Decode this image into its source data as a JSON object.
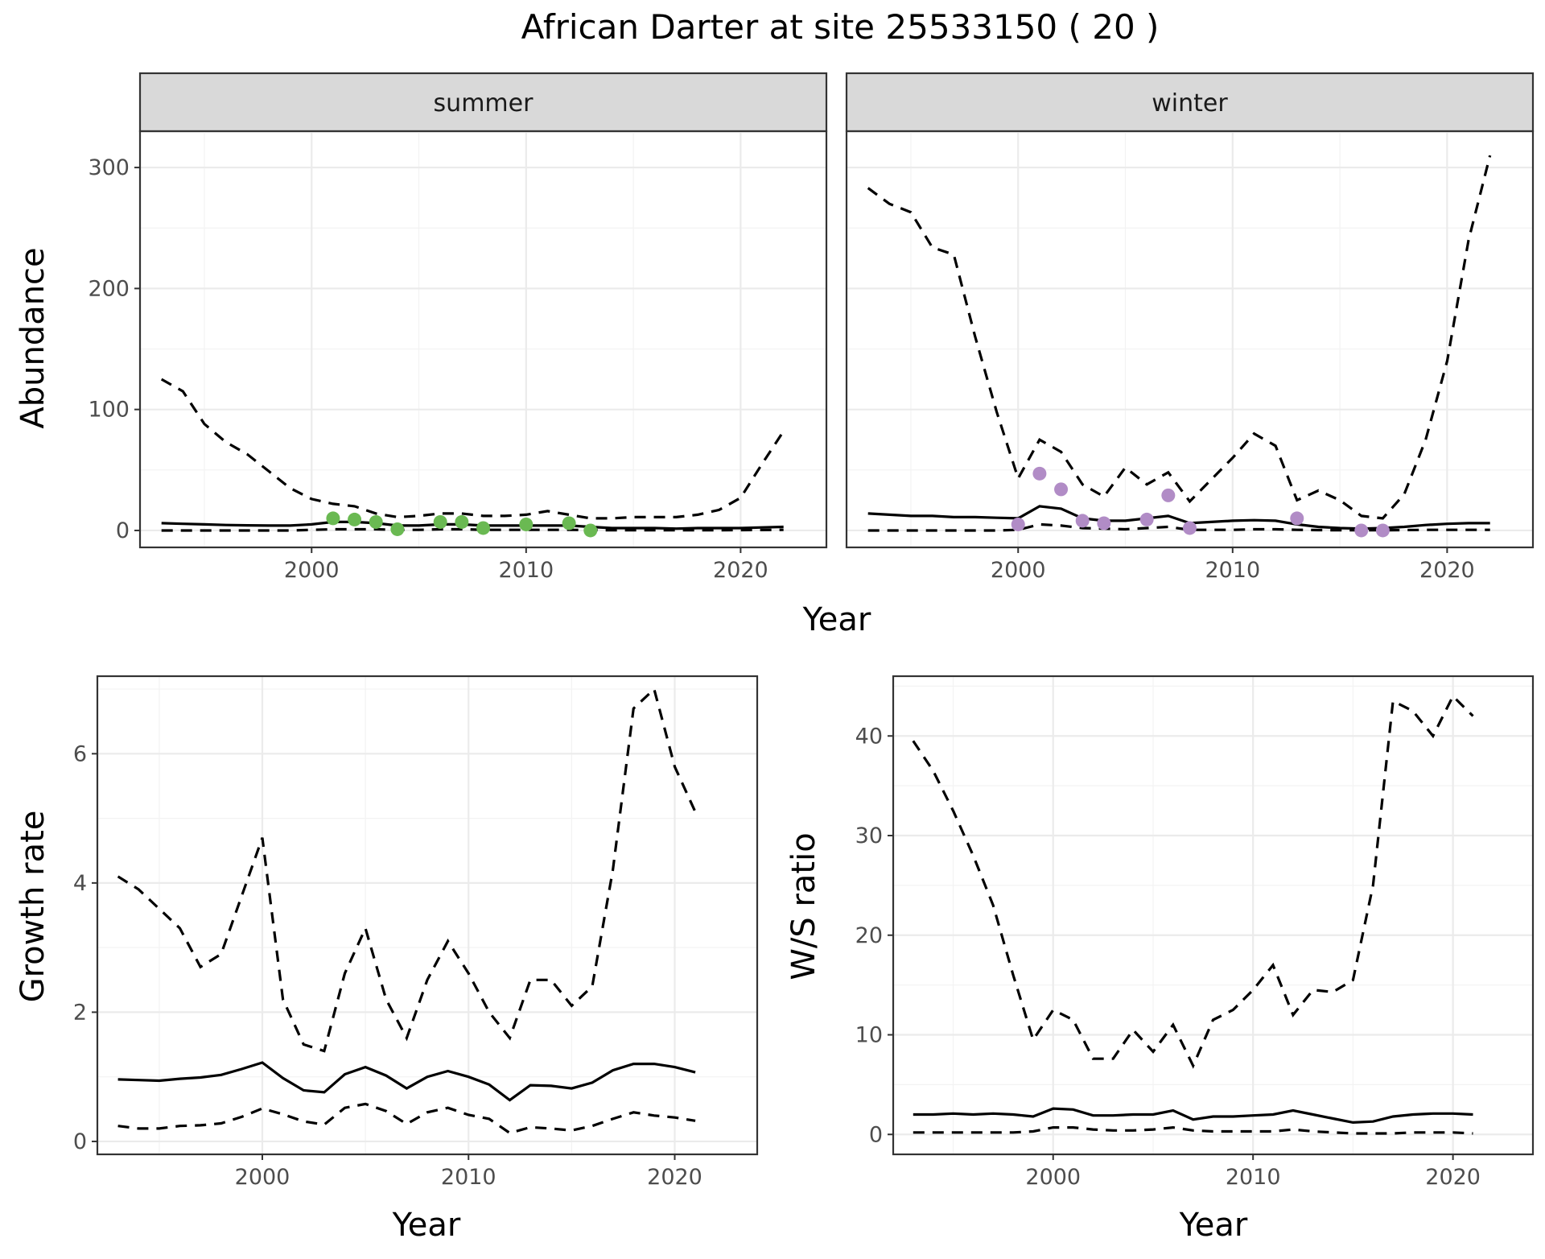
{
  "title": "African Darter at site 25533150 ( 20 )",
  "colors": {
    "summer_points": "#6ab952",
    "winter_points": "#b18cc6",
    "lines": "#000000"
  },
  "chart_data": [
    {
      "id": "abundance",
      "type": "line",
      "ylabel": "Abundance",
      "xlabel": "Year",
      "xlim": [
        1992,
        2024
      ],
      "ylim": [
        -14,
        330
      ],
      "xticks": [
        2000,
        2010,
        2020
      ],
      "yticks": [
        0,
        100,
        200,
        300
      ],
      "facets": [
        {
          "label": "summer",
          "point_color": "#6ab952",
          "series": [
            {
              "style": "solid",
              "x": [
                1993,
                1994,
                1995,
                1996,
                1997,
                1998,
                1999,
                2000,
                2001,
                2002,
                2003,
                2004,
                2005,
                2006,
                2007,
                2008,
                2009,
                2010,
                2011,
                2012,
                2013,
                2014,
                2015,
                2016,
                2017,
                2018,
                2019,
                2020,
                2021,
                2022
              ],
              "y": [
                6,
                5.5,
                5,
                4.5,
                4.2,
                4,
                4,
                5,
                7,
                7,
                6,
                4,
                4,
                5,
                5,
                4,
                4,
                4,
                4,
                4,
                3,
                2,
                2,
                2,
                1.5,
                2,
                2,
                2,
                2.5,
                3
              ]
            },
            {
              "style": "dashed",
              "x": [
                1993,
                1994,
                1995,
                1996,
                1997,
                1998,
                1999,
                2000,
                2001,
                2002,
                2003,
                2004,
                2005,
                2006,
                2007,
                2008,
                2009,
                2010,
                2011,
                2012,
                2013,
                2014,
                2015,
                2016,
                2017,
                2018,
                2019,
                2020,
                2021,
                2022
              ],
              "y": [
                125,
                115,
                88,
                73,
                63,
                49,
                35,
                26,
                22,
                20,
                14,
                11,
                12,
                14,
                14,
                12,
                12,
                13,
                16,
                13,
                10,
                10,
                11,
                11,
                11,
                13,
                17,
                27,
                55,
                82
              ]
            },
            {
              "style": "dashed",
              "x": [
                1993,
                1994,
                1995,
                1996,
                1997,
                1998,
                1999,
                2000,
                2001,
                2002,
                2003,
                2004,
                2005,
                2006,
                2007,
                2008,
                2009,
                2010,
                2011,
                2012,
                2013,
                2014,
                2015,
                2016,
                2017,
                2018,
                2019,
                2020,
                2021,
                2022
              ],
              "y": [
                0,
                0,
                0,
                0,
                0,
                0,
                0,
                0.5,
                1,
                1,
                1,
                0.5,
                0.5,
                1,
                1,
                0.5,
                0.5,
                0.5,
                0.5,
                0.5,
                0.3,
                0.2,
                0.2,
                0.2,
                0.2,
                0.2,
                0.2,
                0.3,
                0.4,
                0.5
              ]
            }
          ],
          "points": {
            "x": [
              2001,
              2002,
              2003,
              2004,
              2006,
              2007,
              2008,
              2010,
              2012,
              2013
            ],
            "y": [
              10,
              9,
              7,
              1,
              7,
              7,
              2,
              5,
              6,
              0
            ]
          }
        },
        {
          "label": "winter",
          "point_color": "#b18cc6",
          "series": [
            {
              "style": "solid",
              "x": [
                1993,
                1994,
                1995,
                1996,
                1997,
                1998,
                1999,
                2000,
                2001,
                2002,
                2003,
                2004,
                2005,
                2006,
                2007,
                2008,
                2009,
                2010,
                2011,
                2012,
                2013,
                2014,
                2015,
                2016,
                2017,
                2018,
                2019,
                2020,
                2021,
                2022
              ],
              "y": [
                14,
                13,
                12,
                12,
                11,
                11,
                10.5,
                10,
                20,
                18,
                10,
                8,
                8,
                10,
                12,
                6,
                7,
                8,
                8.5,
                8,
                5,
                3,
                2,
                1.5,
                2,
                3,
                4.5,
                5.5,
                6,
                6
              ]
            },
            {
              "style": "dashed",
              "x": [
                1993,
                1994,
                1995,
                1996,
                1997,
                1998,
                1999,
                2000,
                2001,
                2002,
                2003,
                2004,
                2005,
                2006,
                2007,
                2008,
                2009,
                2010,
                2011,
                2012,
                2013,
                2014,
                2015,
                2016,
                2017,
                2018,
                2019,
                2020,
                2021,
                2022
              ],
              "y": [
                283,
                270,
                263,
                234,
                228,
                160,
                98,
                43,
                75,
                65,
                38,
                28,
                52,
                38,
                48,
                24,
                42,
                60,
                80,
                70,
                25,
                33,
                25,
                12,
                10,
                30,
                75,
                140,
                240,
                310
              ]
            },
            {
              "style": "dashed",
              "x": [
                1993,
                1994,
                1995,
                1996,
                1997,
                1998,
                1999,
                2000,
                2001,
                2002,
                2003,
                2004,
                2005,
                2006,
                2007,
                2008,
                2009,
                2010,
                2011,
                2012,
                2013,
                2014,
                2015,
                2016,
                2017,
                2018,
                2019,
                2020,
                2021,
                2022
              ],
              "y": [
                0,
                0,
                0,
                0,
                0,
                0,
                0,
                0.5,
                5,
                4,
                2,
                1.5,
                1,
                2,
                3,
                0.5,
                0.5,
                0.5,
                1,
                1,
                0.5,
                0.3,
                0.2,
                0.2,
                0.2,
                0.3,
                0.5,
                0.5,
                0.5,
                0.5
              ]
            }
          ],
          "points": {
            "x": [
              2000,
              2001,
              2002,
              2003,
              2004,
              2006,
              2007,
              2008,
              2013,
              2016,
              2017
            ],
            "y": [
              5,
              47,
              34,
              8,
              6,
              9,
              29,
              2,
              10,
              0,
              0
            ]
          }
        }
      ]
    },
    {
      "id": "growth",
      "type": "line",
      "ylabel": "Growth rate",
      "xlabel": "Year",
      "xlim": [
        1992,
        2024
      ],
      "ylim": [
        -0.2,
        7.2
      ],
      "xticks": [
        2000,
        2010,
        2020
      ],
      "yticks": [
        0,
        2,
        4,
        6
      ],
      "series": [
        {
          "style": "solid",
          "x": [
            1993,
            1994,
            1995,
            1996,
            1997,
            1998,
            1999,
            2000,
            2001,
            2002,
            2003,
            2004,
            2005,
            2006,
            2007,
            2008,
            2009,
            2010,
            2011,
            2012,
            2013,
            2014,
            2015,
            2016,
            2017,
            2018,
            2019,
            2020,
            2021
          ],
          "y": [
            0.96,
            0.95,
            0.94,
            0.97,
            0.99,
            1.03,
            1.12,
            1.22,
            0.98,
            0.79,
            0.76,
            1.04,
            1.15,
            1.02,
            0.82,
            1.0,
            1.09,
            1.0,
            0.88,
            0.64,
            0.87,
            0.86,
            0.82,
            0.91,
            1.1,
            1.2,
            1.2,
            1.15,
            1.07
          ]
        },
        {
          "style": "dashed",
          "x": [
            1993,
            1994,
            1995,
            1996,
            1997,
            1998,
            1999,
            2000,
            2001,
            2002,
            2003,
            2004,
            2005,
            2006,
            2007,
            2008,
            2009,
            2010,
            2011,
            2012,
            2013,
            2014,
            2015,
            2016,
            2017,
            2018,
            2019,
            2020,
            2021
          ],
          "y": [
            4.1,
            3.9,
            3.6,
            3.3,
            2.7,
            2.9,
            3.8,
            4.7,
            2.2,
            1.5,
            1.4,
            2.6,
            3.3,
            2.2,
            1.6,
            2.5,
            3.1,
            2.6,
            2.0,
            1.6,
            2.5,
            2.5,
            2.1,
            2.4,
            4.2,
            6.7,
            7.0,
            5.8,
            5.1
          ]
        },
        {
          "style": "dashed",
          "x": [
            1993,
            1994,
            1995,
            1996,
            1997,
            1998,
            1999,
            2000,
            2001,
            2002,
            2003,
            2004,
            2005,
            2006,
            2007,
            2008,
            2009,
            2010,
            2011,
            2012,
            2013,
            2014,
            2015,
            2016,
            2017,
            2018,
            2019,
            2020,
            2021
          ],
          "y": [
            0.24,
            0.2,
            0.2,
            0.24,
            0.25,
            0.28,
            0.38,
            0.51,
            0.42,
            0.31,
            0.26,
            0.52,
            0.58,
            0.47,
            0.27,
            0.45,
            0.52,
            0.41,
            0.35,
            0.13,
            0.22,
            0.2,
            0.17,
            0.24,
            0.35,
            0.45,
            0.4,
            0.37,
            0.32
          ]
        }
      ]
    },
    {
      "id": "ws_ratio",
      "type": "line",
      "ylabel": "W/S ratio",
      "xlabel": "Year",
      "xlim": [
        1992,
        2024
      ],
      "ylim": [
        -2,
        46
      ],
      "xticks": [
        2000,
        2010,
        2020
      ],
      "yticks": [
        0,
        10,
        20,
        30,
        40
      ],
      "series": [
        {
          "style": "solid",
          "x": [
            1993,
            1994,
            1995,
            1996,
            1997,
            1998,
            1999,
            2000,
            2001,
            2002,
            2003,
            2004,
            2005,
            2006,
            2007,
            2008,
            2009,
            2010,
            2011,
            2012,
            2013,
            2014,
            2015,
            2016,
            2017,
            2018,
            2019,
            2020,
            2021
          ],
          "y": [
            2.0,
            2.0,
            2.1,
            2.0,
            2.1,
            2.0,
            1.8,
            2.6,
            2.5,
            1.9,
            1.9,
            2.0,
            2.0,
            2.4,
            1.5,
            1.8,
            1.8,
            1.9,
            2.0,
            2.4,
            2.0,
            1.6,
            1.2,
            1.3,
            1.8,
            2.0,
            2.1,
            2.1,
            2.0
          ]
        },
        {
          "style": "dashed",
          "x": [
            1993,
            1994,
            1995,
            1996,
            1997,
            1998,
            1999,
            2000,
            2001,
            2002,
            2003,
            2004,
            2005,
            2006,
            2007,
            2008,
            2009,
            2010,
            2011,
            2012,
            2013,
            2014,
            2015,
            2016,
            2017,
            2018,
            2019,
            2020,
            2021
          ],
          "y": [
            39.5,
            36.5,
            32.5,
            28,
            23,
            16,
            9.5,
            12.5,
            11.5,
            7.6,
            7.6,
            10.5,
            8.3,
            11,
            6.9,
            11.5,
            12.5,
            14.5,
            17,
            12,
            14.5,
            14.3,
            15.5,
            25,
            43.5,
            42.5,
            40,
            44,
            42
          ]
        },
        {
          "style": "dashed",
          "x": [
            1993,
            1994,
            1995,
            1996,
            1997,
            1998,
            1999,
            2000,
            2001,
            2002,
            2003,
            2004,
            2005,
            2006,
            2007,
            2008,
            2009,
            2010,
            2011,
            2012,
            2013,
            2014,
            2015,
            2016,
            2017,
            2018,
            2019,
            2020,
            2021
          ],
          "y": [
            0.2,
            0.2,
            0.2,
            0.2,
            0.2,
            0.2,
            0.3,
            0.7,
            0.7,
            0.5,
            0.4,
            0.4,
            0.5,
            0.7,
            0.4,
            0.3,
            0.3,
            0.3,
            0.3,
            0.5,
            0.3,
            0.2,
            0.1,
            0.1,
            0.1,
            0.2,
            0.2,
            0.2,
            0.1
          ]
        }
      ]
    }
  ]
}
